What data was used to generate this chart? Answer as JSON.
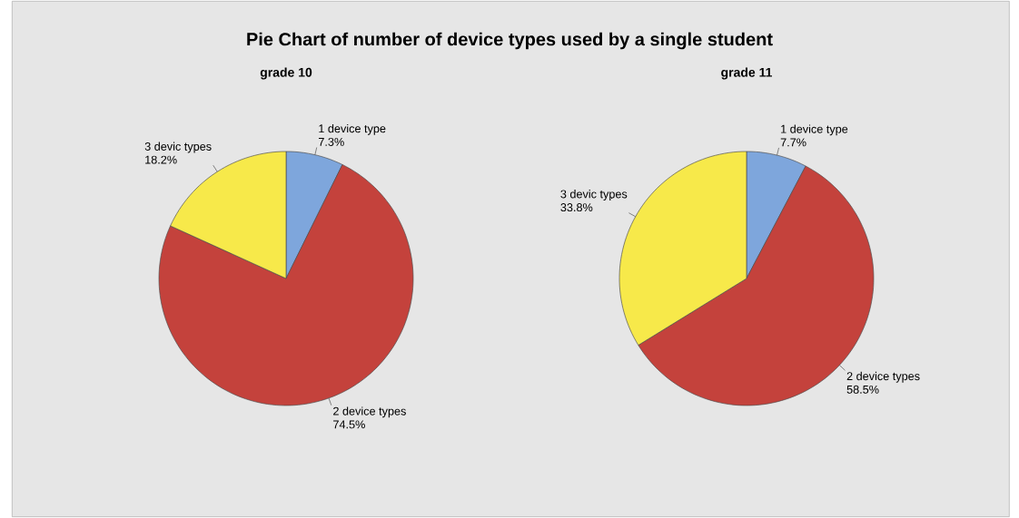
{
  "chart_data": [
    {
      "type": "pie",
      "title": "Pie Chart of number of device types used by a single student",
      "subtitle": "grade 10",
      "categories": [
        "1 device type",
        "2 device types",
        "3 devic types"
      ],
      "values": [
        7.3,
        74.5,
        18.2
      ],
      "value_labels": [
        "7.3%",
        "74.5%",
        "18.2%"
      ],
      "colors": [
        "#7ea6dc",
        "#c4423c",
        "#f7e94a"
      ]
    },
    {
      "type": "pie",
      "subtitle": "grade 11",
      "categories": [
        "1 device type",
        "2 device types",
        "3 devic types"
      ],
      "values": [
        7.7,
        58.5,
        33.8
      ],
      "value_labels": [
        "7.7%",
        "58.5%",
        "33.8%"
      ],
      "colors": [
        "#7ea6dc",
        "#c4423c",
        "#f7e94a"
      ]
    }
  ]
}
